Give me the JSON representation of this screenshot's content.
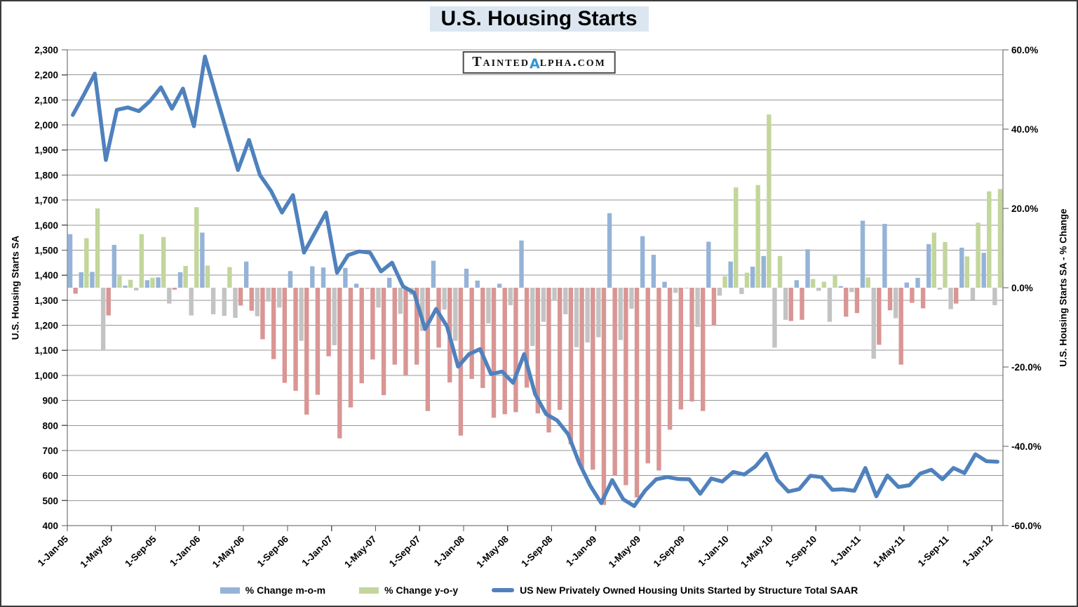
{
  "title": "U.S. Housing Starts",
  "watermark": {
    "display": "TAINTEDαLPHA.COM",
    "prefix": "Tainted",
    "alpha": "α",
    "suffix": "lpha.com"
  },
  "chart_data": {
    "type": "combo-bar-line",
    "x_axis": {
      "start_month": "Jan-2005",
      "end_month": "Jan-2012",
      "n_months": 85,
      "tick_every_months": 4,
      "tick_labels": [
        "1-Jan-05",
        "1-May-05",
        "1-Sep-05",
        "1-Jan-06",
        "1-May-06",
        "1-Sep-06",
        "1-Jan-07",
        "1-May-07",
        "1-Sep-07",
        "1-Jan-08",
        "1-May-08",
        "1-Sep-08",
        "1-Jan-09",
        "1-May-09",
        "1-Sep-09",
        "1-Jan-10",
        "1-May-10",
        "1-Sep-10",
        "1-Jan-11",
        "1-May-11",
        "1-Sep-11",
        "1-Jan-12"
      ]
    },
    "left_axis": {
      "label": "U.S. Housing Starts SA",
      "min": 400,
      "max": 2300,
      "step": 100,
      "tick_labels": [
        "400",
        "500",
        "600",
        "700",
        "800",
        "900",
        "1,000",
        "1,100",
        "1,200",
        "1,300",
        "1,400",
        "1,500",
        "1,600",
        "1,700",
        "1,800",
        "1,900",
        "2,000",
        "2,100",
        "2,200",
        "2,300"
      ]
    },
    "right_axis": {
      "label": "U.S. Housing Starts SA - % Change",
      "min": -60,
      "max": 60,
      "step": 20,
      "zero_at_left_value": 1350,
      "tick_labels": [
        "-60.0%",
        "-40.0%",
        "-20.0%",
        "0.0%",
        "20.0%",
        "40.0%",
        "60.0%"
      ]
    },
    "grid": "horizontal-only",
    "legend_position": "bottom",
    "series": [
      {
        "name": "% Change m-o-m",
        "type": "bar",
        "axis": "right",
        "color_positive": "#95b3d7",
        "color_negative": "#c3c3c3",
        "values": [
          13.5,
          3.9,
          4.0,
          -15.6,
          10.8,
          0.5,
          -0.7,
          1.9,
          2.6,
          -4.0,
          3.9,
          -7.0,
          13.9,
          -6.7,
          -7.1,
          -7.6,
          6.6,
          -7.2,
          -3.5,
          -5.0,
          4.2,
          -13.4,
          5.4,
          5.1,
          -14.5,
          5.0,
          1.0,
          -0.3,
          -5.0,
          2.5,
          -6.6,
          -1.8,
          -10.9,
          6.8,
          -5.5,
          -13.4,
          4.8,
          1.8,
          -9.0,
          1.0,
          -4.4,
          11.9,
          -14.7,
          -8.6,
          -3.0,
          -6.7,
          -15.0,
          -13.8,
          -12.5,
          18.8,
          -13.2,
          -5.3,
          13.0,
          8.3,
          1.5,
          -1.3,
          -0.2,
          -9.9,
          11.6,
          -2.0,
          6.6,
          -1.6,
          5.3,
          8.0,
          -15.1,
          -8.1,
          1.9,
          9.7,
          -0.8,
          -8.6,
          0.4,
          -1.1,
          16.9,
          -17.9,
          16.1,
          -7.7,
          1.3,
          2.5,
          11.0,
          -0.5,
          -5.4,
          10.1,
          -3.1,
          8.8,
          -4.4
        ]
      },
      {
        "name": "% Change y-o-y",
        "type": "bar",
        "axis": "right",
        "color_positive": "#c3d69b",
        "color_negative": "#d99694",
        "values": [
          -1.5,
          12.5,
          20.0,
          -7.0,
          3.0,
          2.0,
          13.5,
          2.5,
          12.8,
          -0.5,
          5.5,
          20.3,
          5.6,
          0.0,
          5.2,
          -4.5,
          -5.8,
          -13.0,
          -18.0,
          -24.0,
          -26.0,
          -32.0,
          -27.0,
          -17.3,
          -38.0,
          -30.2,
          -24.1,
          -18.1,
          -27.1,
          -19.4,
          -22.0,
          -19.4,
          -31.1,
          -15.1,
          -23.9,
          -37.3,
          -23.0,
          -25.3,
          -32.8,
          -31.9,
          -31.4,
          -25.2,
          -31.7,
          -36.5,
          -30.8,
          -39.5,
          -45.6,
          -45.9,
          -54.8,
          -47.3,
          -49.8,
          -52.9,
          -44.3,
          -46.1,
          -35.8,
          -30.7,
          -28.7,
          -31.1,
          -9.5,
          2.9,
          25.3,
          3.8,
          25.9,
          43.7,
          8.0,
          -8.4,
          -8.1,
          2.2,
          1.5,
          3.0,
          -7.3,
          -6.4,
          2.6,
          -14.4,
          -5.7,
          -19.4,
          -3.8,
          -5.2,
          13.9,
          11.5,
          -4.0,
          7.9,
          16.4,
          24.3,
          24.9
        ]
      },
      {
        "name": "US New Privately Owned Housing Units Started by Structure Total SAAR",
        "type": "line",
        "axis": "left",
        "color": "#4f81bd",
        "values": [
          2040,
          2120,
          2205,
          1860,
          2060,
          2070,
          2055,
          2095,
          2150,
          2065,
          2145,
          1995,
          2273,
          2120,
          1970,
          1820,
          1940,
          1800,
          1737,
          1650,
          1720,
          1490,
          1570,
          1650,
          1410,
          1480,
          1495,
          1490,
          1415,
          1450,
          1355,
          1330,
          1185,
          1265,
          1195,
          1035,
          1085,
          1105,
          1005,
          1015,
          970,
          1085,
          925,
          845,
          820,
          765,
          650,
          560,
          490,
          582,
          505,
          478,
          540,
          585,
          594,
          586,
          585,
          527,
          588,
          576,
          614,
          604,
          636,
          687,
          583,
          536,
          546,
          599,
          594,
          543,
          545,
          539,
          630,
          517,
          600,
          554,
          561,
          608,
          623,
          585,
          630,
          610,
          685,
          657,
          655
        ]
      }
    ],
    "colors": {
      "gridline": "#969696",
      "axis_line": "#595959",
      "title_background": "#dce6f1",
      "watermark_alpha": "#2e96d4"
    }
  }
}
